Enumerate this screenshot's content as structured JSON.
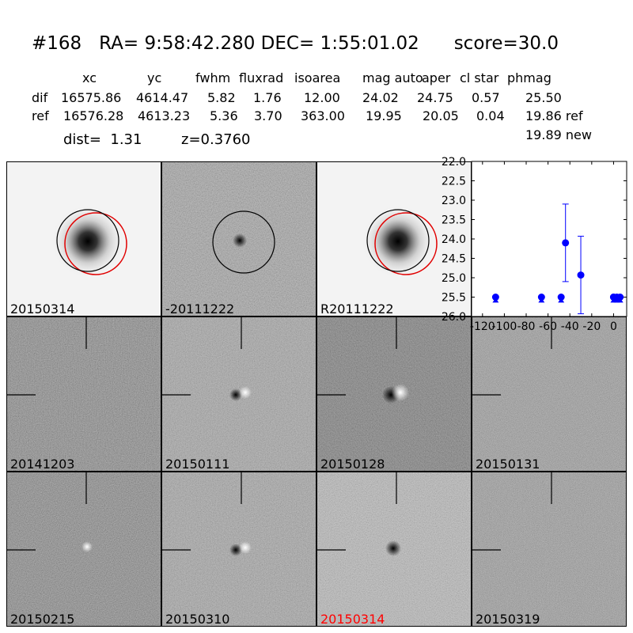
{
  "header": {
    "id": "#168",
    "ra": "RA= 9:58:42.280",
    "dec": "DEC= 1:55:01.02",
    "score": "score=30.0"
  },
  "table": {
    "columns": [
      "xc",
      "yc",
      "fwhm",
      "fluxrad",
      "isoarea",
      "mag auto",
      "aper",
      "cl star",
      "phmag"
    ],
    "rows": [
      {
        "label": "dif",
        "values": [
          "16575.86",
          "4614.47",
          "5.82",
          "1.76",
          "12.00",
          "24.02",
          "24.75",
          "0.57",
          "25.50"
        ]
      },
      {
        "label": "ref",
        "values": [
          "16576.28",
          "4613.23",
          "5.36",
          "3.70",
          "363.00",
          "19.95",
          "20.05",
          "0.04",
          "19.86 ref"
        ]
      }
    ],
    "extra_phmag": "19.89 new"
  },
  "info": {
    "dist": "dist=  1.31",
    "z": "z=0.3760"
  },
  "panels": [
    {
      "label": "20150314",
      "kind": "galaxy",
      "label_color": "#000000"
    },
    {
      "label": "-20111222",
      "kind": "diff-circle",
      "label_color": "#000000"
    },
    {
      "label": "R20111222",
      "kind": "galaxy",
      "label_color": "#000000"
    },
    {
      "label": "20141203",
      "kind": "noise",
      "label_color": "#000000"
    },
    {
      "label": "20150111",
      "kind": "dipole",
      "label_color": "#000000"
    },
    {
      "label": "20150128",
      "kind": "dipole-strong",
      "label_color": "#000000"
    },
    {
      "label": "20150131",
      "kind": "noise-fine",
      "label_color": "#000000"
    },
    {
      "label": "20150215",
      "kind": "bright-dot",
      "label_color": "#000000"
    },
    {
      "label": "20150310",
      "kind": "dipole",
      "label_color": "#000000"
    },
    {
      "label": "20150314",
      "kind": "dark-dot",
      "label_color": "#ff0000"
    },
    {
      "label": "20150319",
      "kind": "noise-fine",
      "label_color": "#000000"
    }
  ],
  "chart_data": {
    "type": "scatter",
    "x": [
      -108,
      -66,
      -48,
      -44,
      -30,
      0,
      0,
      3,
      6
    ],
    "y": [
      25.5,
      25.5,
      25.5,
      24.1,
      24.93,
      25.5,
      25.5,
      25.5,
      25.5
    ],
    "yerr": [
      0,
      0,
      0,
      1.0,
      1.0,
      0,
      0,
      0,
      0
    ],
    "limit_markers_x": [
      -108,
      -66,
      -48,
      0,
      3,
      6
    ],
    "limit_markers_y": [
      25.58,
      25.58,
      25.58,
      25.58,
      25.58,
      25.58
    ],
    "xlim": [
      -130,
      12
    ],
    "ylim": [
      26.0,
      22.0
    ],
    "xticks": [
      "-120",
      "-100",
      "-80",
      "-60",
      "-40",
      "-20",
      "0"
    ],
    "xtick_values": [
      -120,
      -100,
      -80,
      -60,
      -40,
      -20,
      0
    ],
    "yticks": [
      "22.0",
      "22.5",
      "23.0",
      "23.5",
      "24.0",
      "24.5",
      "25.0",
      "25.5",
      "26.0"
    ],
    "ytick_values": [
      22.0,
      22.5,
      23.0,
      23.5,
      24.0,
      24.5,
      25.0,
      25.5,
      26.0
    ],
    "point_color": "#0000ff"
  }
}
